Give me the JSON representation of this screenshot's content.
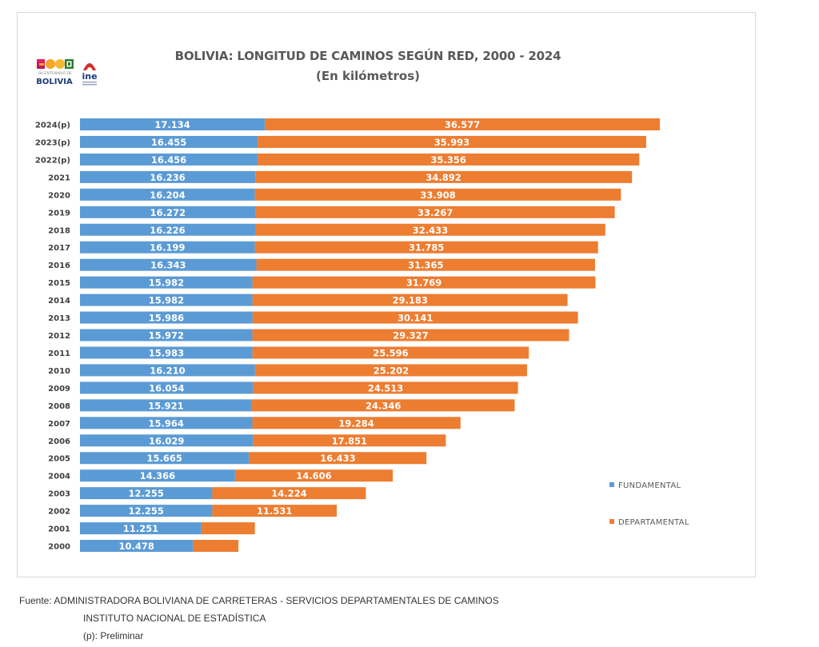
{
  "logos": [
    {
      "name": "bicentenario-de-bolivia",
      "text_top": "BICENTENARIO DE",
      "text_main": "BOLIVIA"
    },
    {
      "name": "ine",
      "text_main": "ine"
    }
  ],
  "colors": {
    "fundamental": "#5b9bd5",
    "departamental": "#ed7d31",
    "title": "#595959",
    "axis_label": "#404040",
    "frame_border": "#d9d9d9"
  },
  "chart_data": {
    "type": "bar",
    "orientation": "horizontal",
    "stacked": true,
    "title": "BOLIVIA: LONGITUD DE CAMINOS SEGÚN RED, 2000 - 2024",
    "subtitle": "(En kilómetros)",
    "xlabel": "",
    "ylabel": "",
    "grid": false,
    "legend_position": "right",
    "xlim": [
      0,
      55000
    ],
    "categories": [
      "2024(p)",
      "2023(p)",
      "2022(p)",
      "2021",
      "2020",
      "2019",
      "2018",
      "2017",
      "2016",
      "2015",
      "2014",
      "2013",
      "2012",
      "2011",
      "2010",
      "2009",
      "2008",
      "2007",
      "2006",
      "2005",
      "2004",
      "2003",
      "2002",
      "2001",
      "2000"
    ],
    "series": [
      {
        "name": "FUNDAMENTAL",
        "values": [
          17134,
          16455,
          16456,
          16236,
          16204,
          16272,
          16226,
          16199,
          16343,
          15982,
          15982,
          15986,
          15972,
          15983,
          16210,
          16054,
          15921,
          15964,
          16029,
          15665,
          14366,
          12255,
          12255,
          11251,
          10478
        ],
        "labels": [
          "17.134",
          "16.455",
          "16.456",
          "16.236",
          "16.204",
          "16.272",
          "16.226",
          "16.199",
          "16.343",
          "15.982",
          "15.982",
          "15.986",
          "15.972",
          "15.983",
          "16.210",
          "16.054",
          "15.921",
          "15.964",
          "16.029",
          "15.665",
          "14.366",
          "12.255",
          "12.255",
          "11.251",
          "10.478"
        ]
      },
      {
        "name": "DEPARTAMENTAL",
        "values": [
          36577,
          35993,
          35356,
          34892,
          33908,
          33267,
          32433,
          31785,
          31365,
          31769,
          29183,
          30141,
          29327,
          25596,
          25202,
          24513,
          24346,
          19284,
          17851,
          16433,
          14606,
          14224,
          11531,
          4950,
          4200
        ],
        "labels": [
          "36.577",
          "35.993",
          "35.356",
          "34.892",
          "33.908",
          "33.267",
          "32.433",
          "31.785",
          "31.365",
          "31.769",
          "29.183",
          "30.141",
          "29.327",
          "25.596",
          "25.202",
          "24.513",
          "24.346",
          "19.284",
          "17.851",
          "16.433",
          "14.606",
          "14.224",
          "11.531",
          null,
          null
        ]
      }
    ]
  },
  "footer": {
    "source_line1": "Fuente: ADMINISTRADORA BOLIVIANA DE CARRETERAS - SERVICIOS DEPARTAMENTALES DE CAMINOS",
    "source_line2": "INSTITUTO NACIONAL DE ESTADÍSTICA",
    "note": "(p): Preliminar"
  }
}
